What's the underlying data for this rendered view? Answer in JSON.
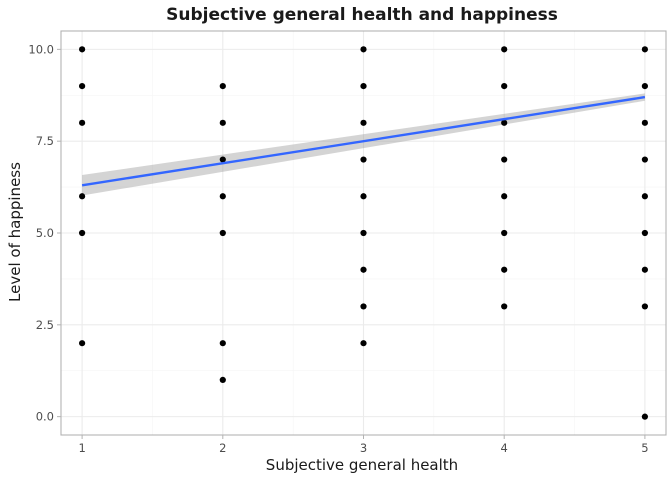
{
  "chart_data": {
    "type": "scatter",
    "title": "Subjective general health and happiness",
    "xlabel": "Subjective general health",
    "ylabel": "Level of happiness",
    "xlim": [
      0.85,
      5.15
    ],
    "ylim": [
      -0.5,
      10.5
    ],
    "x_ticks": [
      1,
      2,
      3,
      4,
      5
    ],
    "x_tick_labels": [
      "1",
      "2",
      "3",
      "4",
      "5"
    ],
    "y_ticks": [
      0,
      2.5,
      5,
      7.5,
      10
    ],
    "y_tick_labels": [
      "0.0",
      "2.5",
      "5.0",
      "7.5",
      "10.0"
    ],
    "grid": true,
    "points": [
      [
        1,
        2
      ],
      [
        1,
        5
      ],
      [
        1,
        6
      ],
      [
        1,
        8
      ],
      [
        1,
        9
      ],
      [
        1,
        10
      ],
      [
        2,
        1
      ],
      [
        2,
        2
      ],
      [
        2,
        5
      ],
      [
        2,
        6
      ],
      [
        2,
        7
      ],
      [
        2,
        8
      ],
      [
        2,
        9
      ],
      [
        3,
        2
      ],
      [
        3,
        3
      ],
      [
        3,
        4
      ],
      [
        3,
        5
      ],
      [
        3,
        6
      ],
      [
        3,
        7
      ],
      [
        3,
        8
      ],
      [
        3,
        9
      ],
      [
        3,
        10
      ],
      [
        4,
        3
      ],
      [
        4,
        4
      ],
      [
        4,
        5
      ],
      [
        4,
        6
      ],
      [
        4,
        7
      ],
      [
        4,
        8
      ],
      [
        4,
        9
      ],
      [
        4,
        10
      ],
      [
        5,
        0
      ],
      [
        5,
        3
      ],
      [
        5,
        4
      ],
      [
        5,
        5
      ],
      [
        5,
        6
      ],
      [
        5,
        7
      ],
      [
        5,
        8
      ],
      [
        5,
        9
      ],
      [
        5,
        10
      ]
    ],
    "fit_line": {
      "method": "linear",
      "x": [
        1,
        5
      ],
      "y": [
        6.3,
        8.7
      ],
      "color": "#3366ff",
      "ci_lower": [
        6.02,
        8.6
      ],
      "ci_upper": [
        6.58,
        8.8
      ],
      "ci_color": "#999999"
    },
    "point_color": "#000000"
  }
}
